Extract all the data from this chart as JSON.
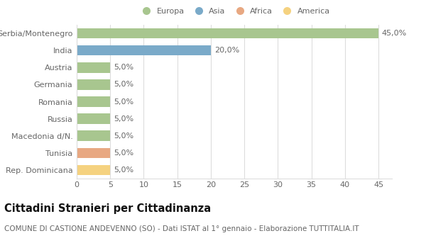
{
  "categories": [
    "Serbia/Montenegro",
    "India",
    "Austria",
    "Germania",
    "Romania",
    "Russia",
    "Macedonia d/N.",
    "Tunisia",
    "Rep. Dominicana"
  ],
  "values": [
    45.0,
    20.0,
    5.0,
    5.0,
    5.0,
    5.0,
    5.0,
    5.0,
    5.0
  ],
  "colors": [
    "#a8c68f",
    "#7aaac9",
    "#a8c68f",
    "#a8c68f",
    "#a8c68f",
    "#a8c68f",
    "#a8c68f",
    "#e8a882",
    "#f5d280"
  ],
  "labels": [
    "45,0%",
    "20,0%",
    "5,0%",
    "5,0%",
    "5,0%",
    "5,0%",
    "5,0%",
    "5,0%",
    "5,0%"
  ],
  "legend_labels": [
    "Europa",
    "Asia",
    "Africa",
    "America"
  ],
  "legend_colors": [
    "#a8c68f",
    "#7aaac9",
    "#e8a882",
    "#f5d280"
  ],
  "xlim": [
    0,
    47
  ],
  "xticks": [
    0,
    5,
    10,
    15,
    20,
    25,
    30,
    35,
    40,
    45
  ],
  "title": "Cittadini Stranieri per Cittadinanza",
  "subtitle": "COMUNE DI CASTIONE ANDEVENNO (SO) - Dati ISTAT al 1° gennaio - Elaborazione TUTTITALIA.IT",
  "background_color": "#ffffff",
  "grid_color": "#dddddd",
  "text_color": "#666666",
  "title_color": "#111111",
  "label_fontsize": 8,
  "tick_fontsize": 8,
  "title_fontsize": 10.5,
  "subtitle_fontsize": 7.5
}
